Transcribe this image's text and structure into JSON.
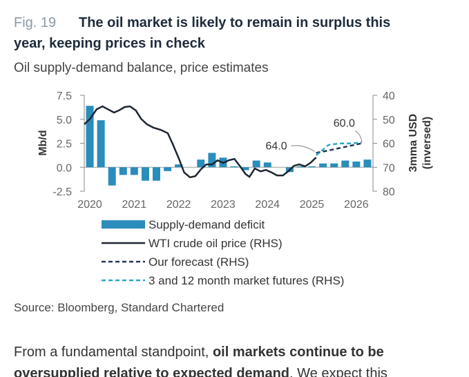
{
  "figure_label": "Fig. 19",
  "chart_data": {
    "type": "combo",
    "title": [
      "The oil market is likely to remain in surplus this",
      "year, keeping prices in check"
    ],
    "subtitle": "Oil supply-demand balance, price estimates",
    "ylabel": "Mb/d",
    "y2label": [
      "3mma USD",
      "(inversed)"
    ],
    "xlim": [
      2020,
      2026.5
    ],
    "xticks": [
      2020,
      2021,
      2022,
      2023,
      2024,
      2025,
      2026
    ],
    "ylim": [
      -2.5,
      7.5
    ],
    "yticks": [
      -2.5,
      {
        "value": 0,
        "label": "0.0"
      },
      2.5,
      {
        "value": 5,
        "label": "5.0"
      },
      7.5
    ],
    "y2lim": [
      80,
      40
    ],
    "y2ticks": [
      40,
      50,
      60,
      70,
      80
    ],
    "series": [
      {
        "name": "Supply-demand deficit",
        "type": "bar",
        "color": "#2a8dbb",
        "x": [
          2020.125,
          2020.375,
          2020.625,
          2020.875,
          2021.125,
          2021.375,
          2021.625,
          2021.875,
          2022.125,
          2022.375,
          2022.625,
          2022.875,
          2023.125,
          2023.375,
          2023.625,
          2023.875,
          2024.125,
          2024.375,
          2024.625,
          2024.875,
          2025.125,
          2025.375,
          2025.625,
          2025.875,
          2026.125,
          2026.375
        ],
        "values": [
          6.4,
          4.9,
          -1.9,
          -0.8,
          -0.8,
          -1.4,
          -1.4,
          -0.4,
          0.3,
          0.0,
          0.8,
          1.5,
          1.0,
          0.1,
          -0.3,
          0.7,
          0.5,
          0.0,
          -0.5,
          0.1,
          0.1,
          0.4,
          0.4,
          0.7,
          0.6,
          0.8
        ]
      },
      {
        "name": "WTI crude oil price (RHS)",
        "type": "line",
        "axis": "y2",
        "color": "#1c2530",
        "dash": false,
        "x": [
          2020.0,
          2020.13,
          2020.28,
          2020.41,
          2020.53,
          2020.67,
          2020.78,
          2020.91,
          2021.03,
          2021.16,
          2021.28,
          2021.41,
          2021.56,
          2021.72,
          2021.88,
          2022.0,
          2022.13,
          2022.25,
          2022.38,
          2022.5,
          2022.63,
          2022.75,
          2022.88,
          2023.0,
          2023.13,
          2023.25,
          2023.38,
          2023.5,
          2023.63,
          2023.72,
          2023.84,
          2023.97,
          2024.09,
          2024.22,
          2024.34,
          2024.47,
          2024.59,
          2024.72,
          2024.84,
          2024.97,
          2025.09,
          2025.22
        ],
        "values": [
          52.1,
          49.8,
          45.8,
          44.6,
          45.8,
          47.2,
          46.3,
          44.9,
          44.6,
          46.3,
          49.8,
          52.1,
          53.5,
          54.4,
          55.8,
          60.7,
          66.4,
          72.2,
          74.2,
          73.7,
          70.8,
          68.8,
          68.8,
          67.1,
          68.2,
          67.1,
          66.5,
          69.4,
          72.8,
          74.0,
          70.5,
          71.7,
          71.1,
          72.2,
          73.4,
          73.4,
          71.7,
          69.4,
          68.8,
          69.6,
          68.2,
          65.9
        ]
      },
      {
        "name": "Our forecast (RHS)",
        "type": "line",
        "axis": "y2",
        "color": "#1f3656",
        "dash": true,
        "x": [
          2025.22,
          2025.5,
          2025.75,
          2026.0,
          2026.25
        ],
        "values": [
          64,
          63,
          62,
          61,
          60
        ],
        "value_labels": [
          "64.0",
          null,
          null,
          null,
          "60.0"
        ]
      },
      {
        "name": "3 and 12 month market futures (RHS)",
        "type": "line",
        "axis": "y2",
        "color": "#2ba6c8",
        "dash": true,
        "x": [
          2025.22,
          2025.5,
          2025.75,
          2026.0,
          2026.25
        ],
        "values": [
          65,
          60.7,
          60.1,
          60.1,
          59.6
        ]
      }
    ]
  },
  "source": "Source: Bloomberg, Standard Chartered",
  "body": [
    [
      {
        "text": "From a fundamental standpoint, ",
        "bold": false
      },
      {
        "text": "oil markets continue to be",
        "bold": true
      }
    ],
    [
      {
        "text": "oversupplied relative to expected demand",
        "bold": true
      },
      {
        "text": ". We expect this",
        "bold": false
      }
    ]
  ]
}
